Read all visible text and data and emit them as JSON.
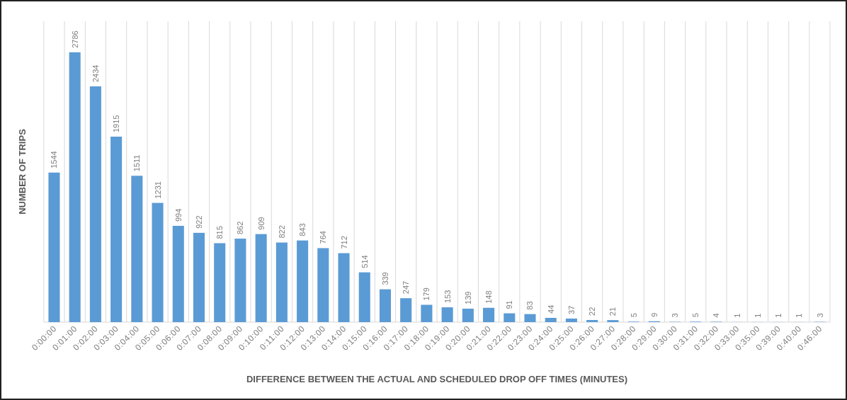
{
  "chart_data": {
    "type": "bar",
    "xlabel": "DIFFERENCE BETWEEN THE ACTUAL AND SCHEDULED DROP OFF TIMES (MINUTES)",
    "ylabel": "NUMBER OF TRIPS",
    "categories": [
      "0:00:00",
      "0:01:00",
      "0:02:00",
      "0:03:00",
      "0:04:00",
      "0:05:00",
      "0:06:00",
      "0:07:00",
      "0:08:00",
      "0:09:00",
      "0:10:00",
      "0:11:00",
      "0:12:00",
      "0:13:00",
      "0:14:00",
      "0:15:00",
      "0:16:00",
      "0:17:00",
      "0:18:00",
      "0:19:00",
      "0:20:00",
      "0:21:00",
      "0:22:00",
      "0:23:00",
      "0:24:00",
      "0:25:00",
      "0:26:00",
      "0:27:00",
      "0:28:00",
      "0:29:00",
      "0:30:00",
      "0:31:00",
      "0:32:00",
      "0:33:00",
      "0:35:00",
      "0:39:00",
      "0:40:00",
      "0:46:00"
    ],
    "values": [
      1544,
      2786,
      2434,
      1915,
      1511,
      1231,
      994,
      922,
      815,
      862,
      909,
      822,
      843,
      764,
      712,
      514,
      339,
      247,
      179,
      153,
      139,
      148,
      91,
      83,
      44,
      37,
      22,
      21,
      5,
      9,
      3,
      5,
      4,
      1,
      1,
      1,
      1,
      3
    ],
    "color": "#5b9bd5",
    "data_labels": true,
    "grid": "x",
    "tick_labels": "x"
  }
}
